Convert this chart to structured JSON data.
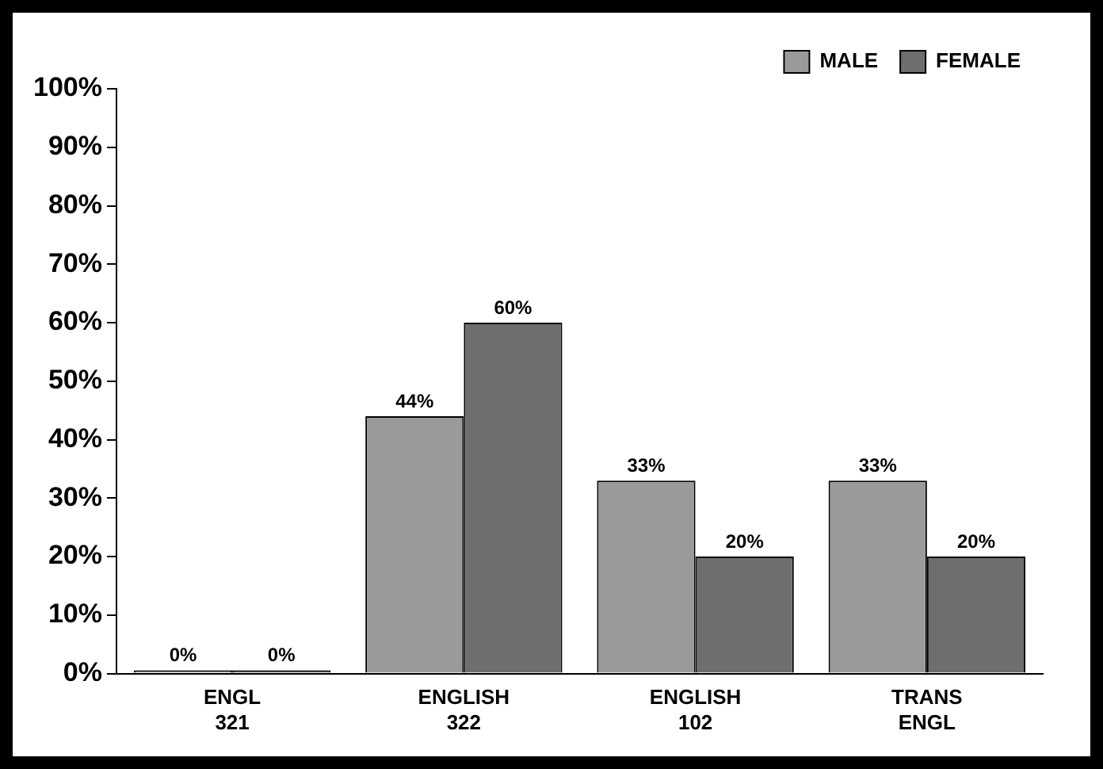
{
  "chart_data": {
    "type": "bar",
    "categories": [
      "ENGL 321",
      "ENGLISH 322",
      "ENGLISH 102",
      "TRANS ENGL"
    ],
    "series": [
      {
        "name": "MALE",
        "color": "#9a9a9a",
        "values": [
          0,
          44,
          33,
          33
        ],
        "value_labels": [
          "0%",
          "44%",
          "33%",
          "33%"
        ]
      },
      {
        "name": "FEMALE",
        "color": "#6e6e6e",
        "values": [
          0,
          60,
          20,
          20
        ],
        "value_labels": [
          "0%",
          "60%",
          "20%",
          "20%"
        ]
      }
    ],
    "ylim": [
      0,
      100
    ],
    "yticks": [
      {
        "value": 0,
        "label": "0%"
      },
      {
        "value": 10,
        "label": "10%"
      },
      {
        "value": 20,
        "label": "20%"
      },
      {
        "value": 30,
        "label": "30%"
      },
      {
        "value": 40,
        "label": "40%"
      },
      {
        "value": 50,
        "label": "50%"
      },
      {
        "value": 60,
        "label": "60%"
      },
      {
        "value": 70,
        "label": "70%"
      },
      {
        "value": 80,
        "label": "80%"
      },
      {
        "value": 90,
        "label": "90%"
      },
      {
        "value": 100,
        "label": "100%"
      }
    ],
    "grid": false,
    "legend": "top right"
  }
}
